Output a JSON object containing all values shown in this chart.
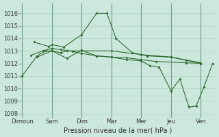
{
  "background_color": "#cce8dc",
  "grid_color": "#aacfbf",
  "line_color": "#2d6b2d",
  "xlabel": "Pression niveau de la mer( hPa )",
  "ylim": [
    1007.8,
    1016.8
  ],
  "yticks": [
    1008,
    1009,
    1010,
    1011,
    1012,
    1013,
    1014,
    1015,
    1016
  ],
  "xlabels": [
    "Dimoun",
    "Sam",
    "Dim",
    "Mar",
    "Mer",
    "Jeu",
    "Ven"
  ],
  "xtick_pos": [
    0,
    1,
    2,
    3,
    4,
    5,
    6
  ],
  "xlim": [
    -0.05,
    6.5
  ],
  "series": [
    {
      "x": [
        0.0,
        0.5,
        0.8,
        1.0,
        1.3,
        1.5,
        2.0,
        3.0,
        4.0,
        5.0,
        6.0
      ],
      "y": [
        1011.0,
        1012.6,
        1013.0,
        1013.0,
        1012.85,
        1013.0,
        1013.0,
        1013.0,
        1012.7,
        1012.5,
        1012.05
      ]
    },
    {
      "x": [
        0.4,
        0.9,
        1.0,
        1.4,
        2.0,
        2.5,
        2.85,
        3.15,
        3.7,
        4.2,
        5.0,
        5.5,
        6.0
      ],
      "y": [
        1013.7,
        1013.35,
        1013.5,
        1013.3,
        1014.3,
        1016.0,
        1016.0,
        1014.0,
        1012.85,
        1012.6,
        1012.5,
        1012.25,
        1012.0
      ]
    },
    {
      "x": [
        0.3,
        0.7,
        1.0,
        1.3,
        1.7,
        2.0,
        2.5,
        3.0,
        3.5,
        4.0,
        4.5,
        5.5,
        6.0
      ],
      "y": [
        1012.65,
        1013.0,
        1013.2,
        1013.1,
        1012.95,
        1012.8,
        1012.6,
        1012.5,
        1012.45,
        1012.3,
        1012.15,
        1012.05,
        1012.0
      ]
    },
    {
      "x": [
        0.5,
        1.0,
        1.5,
        2.0,
        2.5,
        3.0,
        3.5,
        4.0,
        4.3,
        4.6,
        5.0,
        5.3,
        5.6,
        5.85,
        6.1,
        6.4
      ],
      "y": [
        1012.5,
        1013.0,
        1012.4,
        1013.05,
        1012.6,
        1012.5,
        1012.3,
        1012.2,
        1011.8,
        1011.7,
        1009.8,
        1010.75,
        1008.5,
        1008.6,
        1010.1,
        1012.0
      ]
    }
  ]
}
